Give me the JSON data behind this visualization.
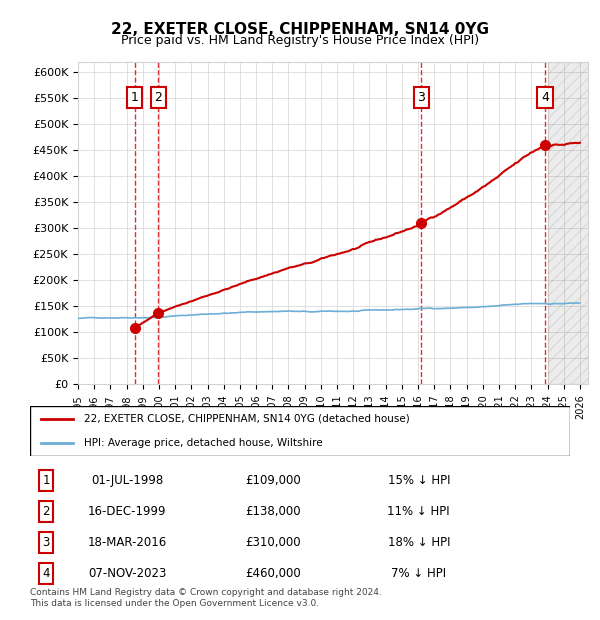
{
  "title": "22, EXETER CLOSE, CHIPPENHAM, SN14 0YG",
  "subtitle": "Price paid vs. HM Land Registry's House Price Index (HPI)",
  "ylabel": "",
  "ylim": [
    0,
    620000
  ],
  "yticks": [
    0,
    50000,
    100000,
    150000,
    200000,
    250000,
    300000,
    350000,
    400000,
    450000,
    500000,
    550000,
    600000
  ],
  "ytick_labels": [
    "£0",
    "£50K",
    "£100K",
    "£150K",
    "£200K",
    "£250K",
    "£300K",
    "£350K",
    "£400K",
    "£450K",
    "£500K",
    "£550K",
    "£600K"
  ],
  "hpi_color": "#6baed6",
  "price_color": "#cc0000",
  "vline_color": "#cc0000",
  "sale_points": [
    {
      "date_num": 1998.5,
      "price": 109000,
      "label": "1"
    },
    {
      "date_num": 1999.96,
      "price": 138000,
      "label": "2"
    },
    {
      "date_num": 2016.21,
      "price": 310000,
      "label": "3"
    },
    {
      "date_num": 2023.85,
      "price": 460000,
      "label": "4"
    }
  ],
  "legend_entries": [
    {
      "label": "22, EXETER CLOSE, CHIPPENHAM, SN14 0YG (detached house)",
      "color": "#cc0000"
    },
    {
      "label": "HPI: Average price, detached house, Wiltshire",
      "color": "#6baed6"
    }
  ],
  "table_rows": [
    {
      "num": "1",
      "date": "01-JUL-1998",
      "price": "£109,000",
      "hpi": "15% ↓ HPI"
    },
    {
      "num": "2",
      "date": "16-DEC-1999",
      "price": "£138,000",
      "hpi": "11% ↓ HPI"
    },
    {
      "num": "3",
      "date": "18-MAR-2016",
      "price": "£310,000",
      "hpi": "18% ↓ HPI"
    },
    {
      "num": "4",
      "date": "07-NOV-2023",
      "price": "£460,000",
      "hpi": "7% ↓ HPI"
    }
  ],
  "footer": "Contains HM Land Registry data © Crown copyright and database right 2024.\nThis data is licensed under the Open Government Licence v3.0.",
  "hatch_after": 2024.0,
  "xmin": 1995.0,
  "xmax": 2026.5
}
